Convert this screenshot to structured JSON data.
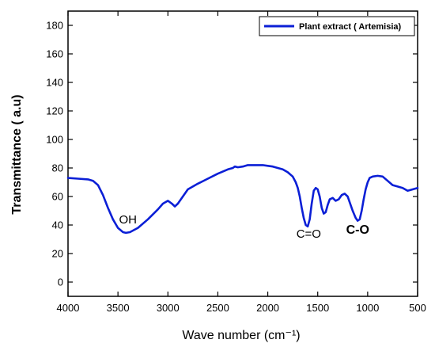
{
  "chart_data": {
    "type": "line",
    "title": "",
    "xlabel": "Wave number (cm⁻¹)",
    "ylabel": "Transmittance ( a.u)",
    "xlim": [
      4000,
      500
    ],
    "ylim": [
      -10,
      190
    ],
    "x_reversed": true,
    "x_ticks": [
      4000,
      3500,
      3000,
      2500,
      2000,
      1500,
      1000,
      500
    ],
    "y_ticks": [
      0,
      20,
      40,
      60,
      80,
      100,
      120,
      140,
      160,
      180
    ],
    "grid": false,
    "legend_position": "top-right",
    "series": [
      {
        "name": "Plant extract ( Artemisia)",
        "color": "#0b1fd6",
        "x": [
          4000,
          3900,
          3800,
          3750,
          3700,
          3650,
          3600,
          3550,
          3500,
          3450,
          3420,
          3380,
          3300,
          3200,
          3100,
          3050,
          3000,
          2960,
          2930,
          2900,
          2850,
          2800,
          2700,
          2600,
          2500,
          2400,
          2350,
          2330,
          2300,
          2250,
          2200,
          2150,
          2100,
          2050,
          2000,
          1950,
          1900,
          1850,
          1800,
          1750,
          1720,
          1700,
          1680,
          1660,
          1640,
          1620,
          1600,
          1580,
          1560,
          1540,
          1520,
          1500,
          1480,
          1460,
          1440,
          1420,
          1400,
          1380,
          1350,
          1320,
          1290,
          1260,
          1230,
          1200,
          1180,
          1150,
          1120,
          1100,
          1080,
          1060,
          1040,
          1020,
          1000,
          980,
          950,
          900,
          850,
          800,
          750,
          700,
          650,
          600,
          550,
          500
        ],
        "y": [
          73,
          72.5,
          72,
          71,
          68,
          61,
          52,
          44,
          38,
          35,
          34.5,
          35,
          38,
          44,
          51,
          55,
          57,
          55,
          53,
          55,
          60,
          65,
          69,
          72.5,
          76,
          79,
          80,
          81,
          80.5,
          81,
          82,
          82,
          82,
          82,
          81.5,
          81,
          80,
          79,
          77,
          74,
          70,
          66,
          60,
          52,
          45,
          40,
          39,
          44,
          55,
          64,
          66,
          65,
          60,
          52,
          48,
          49,
          54,
          58,
          59,
          57,
          58,
          61,
          62,
          60,
          56,
          50,
          45,
          43,
          44,
          50,
          58,
          65,
          70,
          73,
          74,
          74.5,
          74,
          71,
          68,
          67,
          66,
          64,
          65,
          66
        ]
      }
    ],
    "annotations": [
      {
        "text": "OH",
        "x": 3400,
        "y": 41,
        "bold": false
      },
      {
        "text": "C=O",
        "x": 1590,
        "y": 31,
        "bold": false
      },
      {
        "text": "C-O",
        "x": 1100,
        "y": 34,
        "bold": true
      }
    ]
  }
}
